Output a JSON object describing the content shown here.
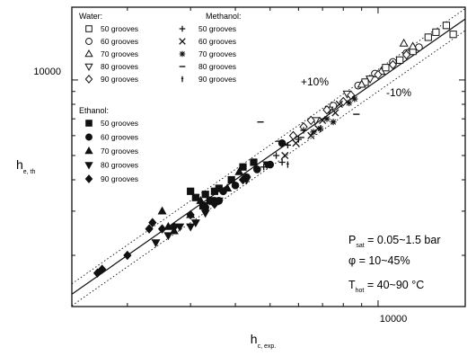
{
  "chart_data": {
    "type": "scatter",
    "title": "",
    "xlabel": "h",
    "xlabel_sub": "c, exp.",
    "ylabel": "h",
    "ylabel_sub": "e, th",
    "xscale": "log",
    "yscale": "log",
    "xlim": [
      1400,
      17500
    ],
    "ylim": [
      1250,
      19500
    ],
    "tick_labels": {
      "x": [
        "10000"
      ],
      "y": [
        "10000"
      ]
    },
    "reference_lines": [
      {
        "name": "parity",
        "factor": 1.0,
        "style": "solid"
      },
      {
        "name": "+10%",
        "factor": 1.1,
        "style": "dotted"
      },
      {
        "name": "-10%",
        "factor": 0.9,
        "style": "dotted"
      }
    ],
    "line_labels": [
      "+10%",
      "-10%"
    ],
    "legend": {
      "placement": "top-left",
      "groups": [
        {
          "title": "Water:",
          "entries": [
            {
              "label": "50 grooves",
              "marker": "square-open"
            },
            {
              "label": "60 grooves",
              "marker": "circle-open"
            },
            {
              "label": "70 grooves",
              "marker": "triangle-up-open"
            },
            {
              "label": "80 grooves",
              "marker": "triangle-down-open"
            },
            {
              "label": "90 grooves",
              "marker": "diamond-open"
            }
          ]
        },
        {
          "title": "Methanol:",
          "entries": [
            {
              "label": "50 grooves",
              "marker": "plus"
            },
            {
              "label": "60 grooves",
              "marker": "cross"
            },
            {
              "label": "70 grooves",
              "marker": "asterisk"
            },
            {
              "label": "80 grooves",
              "marker": "dash"
            },
            {
              "label": "90 grooves",
              "marker": "vbar"
            }
          ]
        },
        {
          "title": "Ethanol:",
          "entries": [
            {
              "label": "50 grooves",
              "marker": "square-filled"
            },
            {
              "label": "60 grooves",
              "marker": "circle-filled"
            },
            {
              "label": "70 grooves",
              "marker": "triangle-up-filled"
            },
            {
              "label": "80 grooves",
              "marker": "triangle-down-filled"
            },
            {
              "label": "90 grooves",
              "marker": "diamond-filled"
            }
          ]
        }
      ]
    },
    "conditions": {
      "psat": {
        "symbol": "P",
        "sub": "sat",
        "value": " = 0.05~1.5 bar"
      },
      "phi": {
        "text": "φ = 10~45%"
      },
      "thot": {
        "symbol": "T",
        "sub": "hot",
        "value": " = 40~90 °C"
      }
    },
    "series": [
      {
        "fluid": "Water",
        "grooves": 50,
        "marker": "square-open",
        "points": [
          [
            14500,
            15500
          ],
          [
            15500,
            16500
          ],
          [
            13800,
            14800
          ],
          [
            12500,
            13000
          ],
          [
            11500,
            12000
          ],
          [
            10500,
            11200
          ],
          [
            9200,
            9800
          ],
          [
            16200,
            15200
          ]
        ]
      },
      {
        "fluid": "Water",
        "grooves": 60,
        "marker": "circle-open",
        "points": [
          [
            12000,
            12800
          ],
          [
            11000,
            11800
          ],
          [
            9800,
            10600
          ],
          [
            8800,
            9500
          ],
          [
            7500,
            7900
          ],
          [
            13000,
            13500
          ]
        ]
      },
      {
        "fluid": "Water",
        "grooves": 70,
        "marker": "triangle-up-open",
        "points": [
          [
            11800,
            14000
          ],
          [
            12500,
            13600
          ],
          [
            10200,
            10800
          ],
          [
            9000,
            9600
          ]
        ]
      },
      {
        "fluid": "Water",
        "grooves": 80,
        "marker": "triangle-down-open",
        "points": [
          [
            7300,
            7600
          ],
          [
            8200,
            8800
          ],
          [
            9500,
            10100
          ],
          [
            6700,
            6900
          ]
        ]
      },
      {
        "fluid": "Water",
        "grooves": 90,
        "marker": "diamond-open",
        "points": [
          [
            8400,
            8700
          ],
          [
            8000,
            8200
          ],
          [
            7200,
            7600
          ],
          [
            6500,
            6900
          ],
          [
            5800,
            6000
          ],
          [
            6200,
            6500
          ],
          [
            11000,
            11500
          ],
          [
            12000,
            12600
          ],
          [
            10000,
            10500
          ]
        ]
      },
      {
        "fluid": "Methanol",
        "grooves": 50,
        "marker": "plus",
        "points": [
          [
            6200,
            6300
          ],
          [
            5600,
            5500
          ],
          [
            5200,
            5000
          ],
          [
            4800,
            4500
          ],
          [
            5400,
            4700
          ],
          [
            6000,
            5800
          ]
        ]
      },
      {
        "fluid": "Methanol",
        "grooves": 60,
        "marker": "cross",
        "points": [
          [
            7000,
            6900
          ],
          [
            7600,
            7400
          ],
          [
            6500,
            6000
          ],
          [
            5900,
            5600
          ],
          [
            5500,
            5000
          ],
          [
            6800,
            6400
          ],
          [
            7800,
            8000
          ]
        ]
      },
      {
        "fluid": "Methanol",
        "grooves": 70,
        "marker": "asterisk",
        "points": [
          [
            7200,
            7000
          ],
          [
            7500,
            6800
          ],
          [
            6900,
            6400
          ],
          [
            8300,
            8100
          ],
          [
            8600,
            8400
          ],
          [
            6600,
            6200
          ]
        ]
      },
      {
        "fluid": "Methanol",
        "grooves": 80,
        "marker": "dash",
        "points": [
          [
            4700,
            6800
          ],
          [
            8700,
            7300
          ],
          [
            5300,
            5700
          ],
          [
            6100,
            5900
          ]
        ]
      },
      {
        "fluid": "Methanol",
        "grooves": 90,
        "marker": "vbar",
        "points": [
          [
            5600,
            4600
          ],
          [
            5000,
            4600
          ],
          [
            4200,
            4500
          ],
          [
            4600,
            4400
          ]
        ]
      },
      {
        "fluid": "Ethanol",
        "grooves": 50,
        "marker": "square-filled",
        "points": [
          [
            3000,
            3600
          ],
          [
            3100,
            3400
          ],
          [
            3300,
            3500
          ],
          [
            3400,
            3300
          ],
          [
            3500,
            3600
          ],
          [
            3600,
            3700
          ],
          [
            3900,
            4000
          ],
          [
            4200,
            4500
          ],
          [
            3250,
            3150
          ],
          [
            4500,
            4700
          ]
        ]
      },
      {
        "fluid": "Ethanol",
        "grooves": 60,
        "marker": "circle-filled",
        "points": [
          [
            3300,
            3100
          ],
          [
            3500,
            3300
          ],
          [
            3700,
            3600
          ],
          [
            4000,
            3800
          ],
          [
            4300,
            4100
          ],
          [
            4600,
            4400
          ],
          [
            5000,
            4600
          ],
          [
            3600,
            3300
          ],
          [
            5400,
            5600
          ]
        ]
      },
      {
        "fluid": "Ethanol",
        "grooves": 70,
        "marker": "triangle-up-filled",
        "points": [
          [
            2500,
            3000
          ],
          [
            2700,
            2500
          ],
          [
            3000,
            2900
          ],
          [
            3200,
            3300
          ],
          [
            3800,
            3700
          ],
          [
            4100,
            4300
          ],
          [
            2600,
            2600
          ]
        ]
      },
      {
        "fluid": "Ethanol",
        "grooves": 80,
        "marker": "triangle-down-filled",
        "points": [
          [
            2400,
            2250
          ],
          [
            2600,
            2400
          ],
          [
            2800,
            2600
          ],
          [
            3100,
            2700
          ],
          [
            3300,
            2950
          ],
          [
            3600,
            3300
          ],
          [
            4300,
            4000
          ],
          [
            4900,
            4600
          ],
          [
            3000,
            2600
          ]
        ]
      },
      {
        "fluid": "Ethanol",
        "grooves": 90,
        "marker": "diamond-filled",
        "points": [
          [
            1650,
            1700
          ],
          [
            1700,
            1760
          ],
          [
            2000,
            2000
          ],
          [
            2300,
            2550
          ],
          [
            2500,
            2550
          ],
          [
            2700,
            2600
          ],
          [
            3000,
            2900
          ],
          [
            2350,
            2700
          ],
          [
            3500,
            3200
          ],
          [
            4200,
            4000
          ],
          [
            3400,
            3300
          ]
        ]
      }
    ]
  }
}
